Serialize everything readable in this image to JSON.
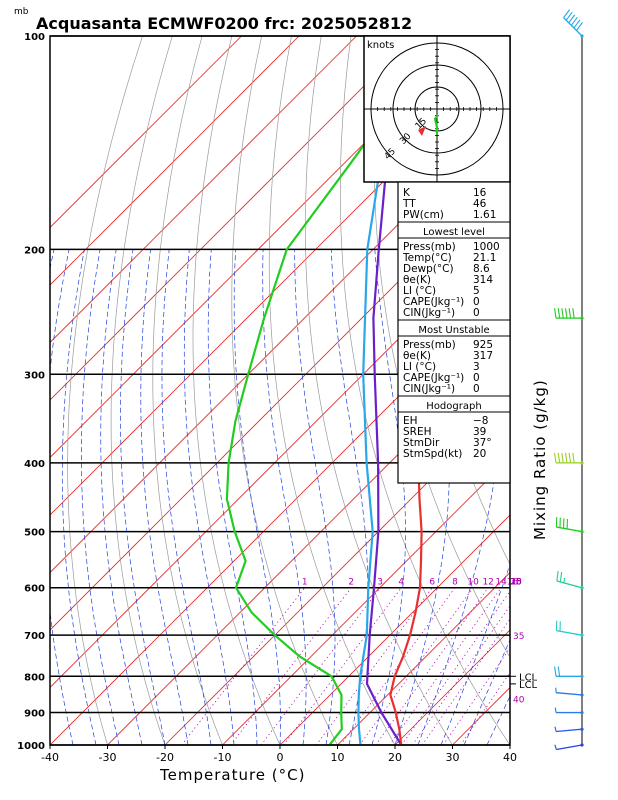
{
  "title": "Acquasanta ECMWF0200 frc: 2025052812",
  "pressure_unit": "mb",
  "colors": {
    "temperature": "#e83030",
    "dewpoint": "#22cc22",
    "parcel": "#6a20c8",
    "wetbulb": "#2aa7e8",
    "isotherm": "#e82020",
    "dry_adiabat": "#9a9a9a",
    "moist_adiabat": "#2040e0",
    "mixing_ratio": "#b000b0"
  },
  "hodograph": {
    "unit_label": "knots",
    "ring_labels": [
      "15",
      "30",
      "45"
    ]
  },
  "indices": {
    "top": [
      {
        "label": "K",
        "value": "16"
      },
      {
        "label": "TT",
        "value": "46"
      },
      {
        "label": "PW(cm)",
        "value": "1.61"
      }
    ],
    "lowest_level": {
      "header": "Lowest level",
      "rows": [
        {
          "label": "Press(mb)",
          "value": "1000"
        },
        {
          "label": "Temp(°C)",
          "value": "21.1"
        },
        {
          "label": "Dewp(°C)",
          "value": "8.6"
        },
        {
          "label": "θe(K)",
          "value": "314"
        },
        {
          "label": "LI (°C)",
          "value": "5"
        },
        {
          "label": "CAPE(Jkg⁻¹)",
          "value": "0"
        },
        {
          "label": "CIN(Jkg⁻¹)",
          "value": "0"
        }
      ]
    },
    "most_unstable": {
      "header": "Most Unstable",
      "rows": [
        {
          "label": "Press(mb)",
          "value": "925"
        },
        {
          "label": "θe(K)",
          "value": "317"
        },
        {
          "label": "LI (°C)",
          "value": "3"
        },
        {
          "label": "CAPE(Jkg⁻¹)",
          "value": "0"
        },
        {
          "label": "CIN(Jkg⁻¹)",
          "value": "0"
        }
      ]
    },
    "hodograph": {
      "header": "Hodograph",
      "rows": [
        {
          "label": "EH",
          "value": "−8"
        },
        {
          "label": "SREH",
          "value": "39"
        },
        {
          "label": "StmDir",
          "value": "37°"
        },
        {
          "label": "StmSpd(kt)",
          "value": "20"
        }
      ]
    }
  },
  "chart_data": {
    "type": "line",
    "title": "Acquasanta ECMWF0200 frc: 2025052812",
    "xlabel": "Temperature (°C)",
    "ylabel": "mb",
    "y2label": "Mixing Ratio (g/kg)",
    "xlim": [
      -40,
      40
    ],
    "ylim": [
      1000,
      100
    ],
    "y_scale": "log",
    "skew": "skew-T",
    "x_ticks": [
      -40,
      -30,
      -20,
      -10,
      0,
      10,
      20,
      30,
      40
    ],
    "pressure_levels": [
      100,
      200,
      300,
      400,
      500,
      600,
      700,
      800,
      900,
      1000
    ],
    "mixing_ratio_lines": [
      {
        "label": "1",
        "value": 1
      },
      {
        "label": "2",
        "value": 2
      },
      {
        "label": "3",
        "value": 3
      },
      {
        "label": "4",
        "value": 4
      },
      {
        "label": "6",
        "value": 6
      },
      {
        "label": "8",
        "value": 8
      },
      {
        "label": "10",
        "value": 10
      },
      {
        "label": "12",
        "value": 12
      },
      {
        "label": "14",
        "value": 14
      },
      {
        "label": "16",
        "value": 16
      },
      {
        "label": "18",
        "value": 18
      },
      {
        "label": "20",
        "value": 20
      },
      {
        "label": "25",
        "value": 25
      },
      {
        "label": "30",
        "value": 30
      }
    ],
    "side_labels": [
      {
        "text": "35",
        "p": 700
      },
      {
        "text": "40",
        "p": 860
      }
    ],
    "lcl_labels": [
      {
        "text": "LCL",
        "p": 800
      },
      {
        "text": "LCL",
        "p": 820
      }
    ],
    "series": [
      {
        "key": "temperature",
        "color": "#e83030",
        "points": [
          [
            1000,
            21.1
          ],
          [
            950,
            18
          ],
          [
            900,
            14.5
          ],
          [
            850,
            10.5
          ],
          [
            800,
            8
          ],
          [
            750,
            6
          ],
          [
            700,
            3.5
          ],
          [
            650,
            0.5
          ],
          [
            600,
            -3
          ],
          [
            550,
            -7.5
          ],
          [
            500,
            -12.5
          ],
          [
            450,
            -18.5
          ],
          [
            400,
            -25
          ],
          [
            350,
            -33
          ],
          [
            300,
            -42
          ],
          [
            250,
            -52
          ],
          [
            200,
            -55
          ],
          [
            150,
            -60
          ],
          [
            100,
            -66
          ]
        ]
      },
      {
        "key": "dewpoint",
        "color": "#22cc22",
        "points": [
          [
            1000,
            8.6
          ],
          [
            950,
            8
          ],
          [
            900,
            5
          ],
          [
            850,
            2
          ],
          [
            800,
            -3
          ],
          [
            750,
            -12
          ],
          [
            700,
            -20
          ],
          [
            650,
            -28
          ],
          [
            600,
            -35
          ],
          [
            550,
            -38
          ],
          [
            500,
            -45
          ],
          [
            450,
            -52
          ],
          [
            400,
            -58
          ],
          [
            350,
            -64
          ],
          [
            300,
            -70
          ],
          [
            250,
            -77
          ],
          [
            200,
            -85
          ],
          [
            150,
            -89
          ],
          [
            100,
            -95
          ]
        ]
      },
      {
        "key": "parcel",
        "color": "#6a20c8",
        "points": [
          [
            1000,
            21.1
          ],
          [
            900,
            12
          ],
          [
            820,
            4.5
          ],
          [
            700,
            -3.5
          ],
          [
            600,
            -11
          ],
          [
            500,
            -20
          ],
          [
            400,
            -32
          ],
          [
            300,
            -48
          ],
          [
            250,
            -58
          ],
          [
            200,
            -69
          ],
          [
            150,
            -83
          ],
          [
            115,
            -95
          ]
        ]
      },
      {
        "key": "wetbulb",
        "color": "#2aa7e8",
        "points": [
          [
            1000,
            14
          ],
          [
            950,
            11
          ],
          [
            900,
            8
          ],
          [
            850,
            5
          ],
          [
            800,
            2
          ],
          [
            700,
            -4
          ],
          [
            600,
            -12
          ],
          [
            500,
            -21
          ],
          [
            400,
            -34
          ],
          [
            300,
            -50
          ],
          [
            200,
            -71
          ],
          [
            150,
            -84
          ],
          [
            100,
            -100
          ]
        ]
      }
    ],
    "wind_profile": [
      {
        "p": 100,
        "dir": 315,
        "spd": 30,
        "color": "#2aa7e8"
      },
      {
        "p": 250,
        "dir": 270,
        "spd": 45,
        "color": "#22cc22"
      },
      {
        "p": 400,
        "dir": 270,
        "spd": 30,
        "color": "#9ad020"
      },
      {
        "p": 500,
        "dir": 280,
        "spd": 20,
        "color": "#22cc22"
      },
      {
        "p": 600,
        "dir": 285,
        "spd": 15,
        "color": "#22cc99"
      },
      {
        "p": 700,
        "dir": 280,
        "spd": 10,
        "color": "#22cccc"
      },
      {
        "p": 800,
        "dir": 270,
        "spd": 10,
        "color": "#2aa7e8"
      },
      {
        "p": 850,
        "dir": 275,
        "spd": 5,
        "color": "#2a7ae8"
      },
      {
        "p": 900,
        "dir": 270,
        "spd": 5,
        "color": "#2a7ae8"
      },
      {
        "p": 950,
        "dir": 265,
        "spd": 5,
        "color": "#2a5ae8"
      },
      {
        "p": 1000,
        "dir": 260,
        "spd": 5,
        "color": "#2a40e8"
      }
    ]
  }
}
